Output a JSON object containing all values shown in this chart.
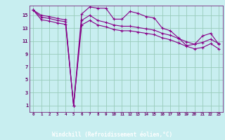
{
  "xlabel": "Windchill (Refroidissement éolien,°C)",
  "x_values": [
    0,
    1,
    2,
    3,
    4,
    5,
    6,
    7,
    8,
    9,
    10,
    11,
    12,
    13,
    14,
    15,
    16,
    17,
    18,
    19,
    20,
    21,
    22,
    23
  ],
  "line1": [
    15.8,
    15.0,
    14.8,
    14.5,
    14.3,
    1.0,
    15.2,
    16.3,
    16.1,
    16.1,
    14.4,
    14.4,
    15.6,
    15.3,
    14.8,
    14.6,
    13.0,
    12.6,
    11.5,
    10.3,
    10.5,
    11.8,
    12.2,
    10.5
  ],
  "line2": [
    15.8,
    14.7,
    14.5,
    14.2,
    14.0,
    1.0,
    14.2,
    15.0,
    14.2,
    13.9,
    13.5,
    13.3,
    13.3,
    13.1,
    12.9,
    12.7,
    12.2,
    11.9,
    11.4,
    10.9,
    10.5,
    10.8,
    11.3,
    10.6
  ],
  "line3": [
    15.8,
    14.3,
    14.1,
    13.8,
    13.6,
    1.0,
    13.5,
    14.2,
    13.5,
    13.2,
    12.8,
    12.6,
    12.6,
    12.4,
    12.2,
    12.0,
    11.5,
    11.2,
    10.7,
    10.2,
    9.8,
    10.0,
    10.6,
    9.8
  ],
  "line_color": "#880088",
  "bg_color": "#c8eef0",
  "grid_color": "#99ccbb",
  "label_color": "#660066",
  "xlabel_bg": "#660066",
  "xlabel_fg": "#ffffff",
  "ylim": [
    0,
    16.5
  ],
  "xlim": [
    -0.5,
    23.5
  ],
  "yticks": [
    1,
    3,
    5,
    7,
    9,
    11,
    13,
    15
  ],
  "xticks": [
    0,
    1,
    2,
    3,
    4,
    5,
    6,
    7,
    8,
    9,
    10,
    11,
    12,
    13,
    14,
    15,
    16,
    17,
    18,
    19,
    20,
    21,
    22,
    23
  ]
}
